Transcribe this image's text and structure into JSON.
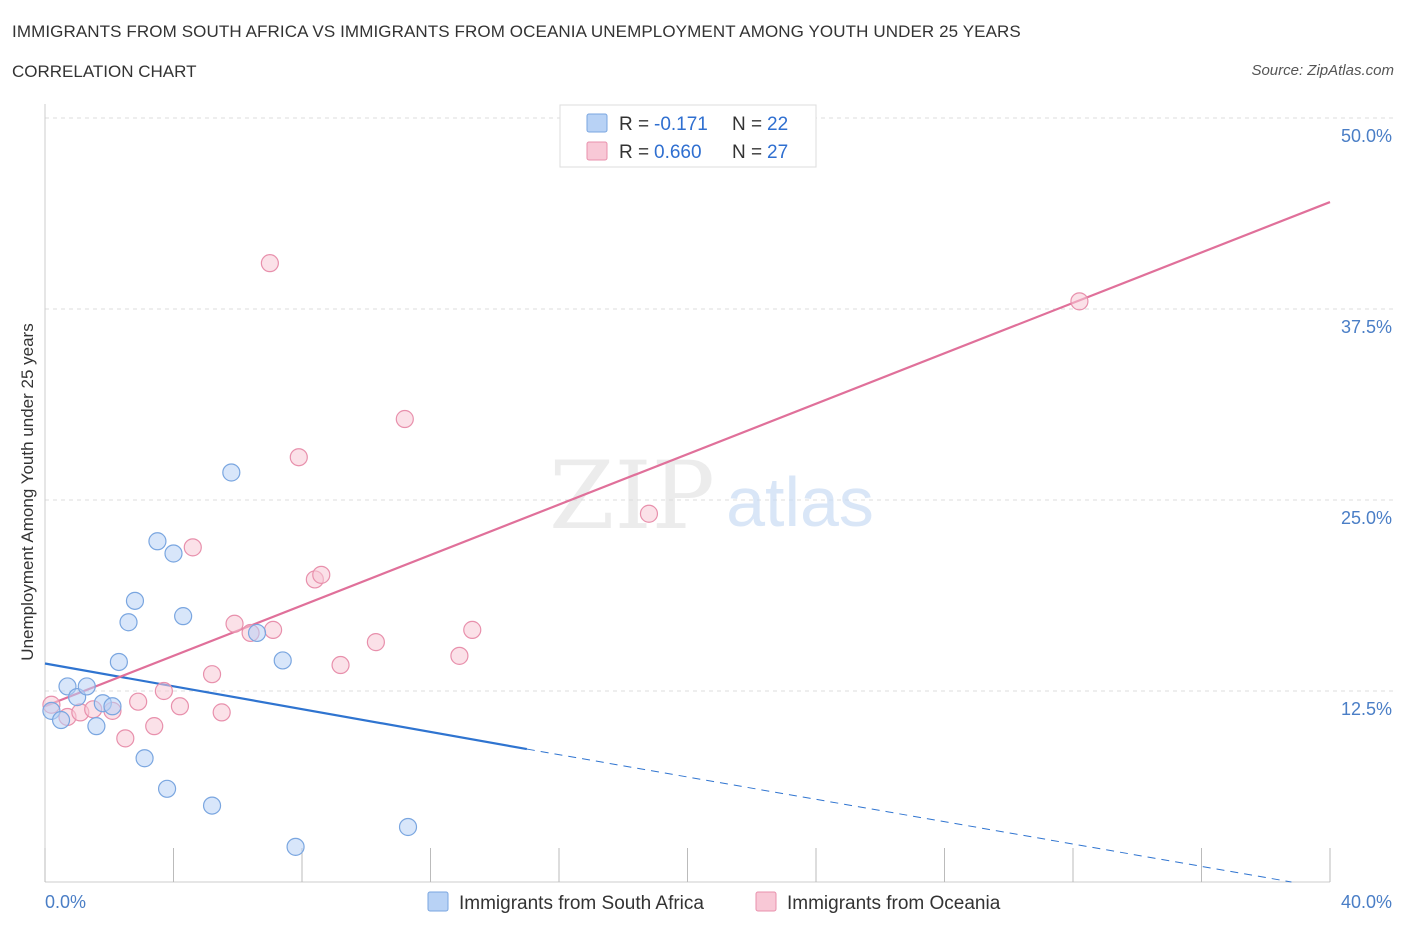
{
  "header": {
    "title": "IMMIGRANTS FROM SOUTH AFRICA VS IMMIGRANTS FROM OCEANIA UNEMPLOYMENT AMONG YOUTH UNDER 25 YEARS",
    "subtitle": "CORRELATION CHART",
    "source": "Source: ZipAtlas.com"
  },
  "watermark": {
    "zip": "ZIP",
    "atlas": "atlas"
  },
  "legend": {
    "r_label": "R =",
    "n_label": "N =",
    "rows": [
      {
        "r": "-0.171",
        "n": "22",
        "fill": "#b8d2f5",
        "stroke": "#7aa6e0"
      },
      {
        "r": "0.660",
        "n": "27",
        "fill": "#f8c8d6",
        "stroke": "#e890ac"
      }
    ]
  },
  "chart_data": {
    "type": "scatter",
    "title": "IMMIGRANTS FROM SOUTH AFRICA VS IMMIGRANTS FROM OCEANIA UNEMPLOYMENT AMONG YOUTH UNDER 25 YEARS",
    "xlabel": "",
    "ylabel": "Unemployment Among Youth under 25 years",
    "xlim": [
      0,
      40
    ],
    "ylim": [
      0,
      50
    ],
    "x_tick_labels": [
      "0.0%",
      "40.0%"
    ],
    "y_ticks": [
      12.5,
      25.0,
      37.5,
      50.0
    ],
    "y_tick_labels": [
      "12.5%",
      "25.0%",
      "37.5%",
      "50.0%"
    ],
    "grid": true,
    "series": [
      {
        "name": "Immigrants from South Africa",
        "color": "#7aa6e0",
        "fill": "#b8d2f5",
        "line_color": "#2f74d0",
        "trend": {
          "x0": 0,
          "y0": 14.3,
          "x_solid_end": 15,
          "y_solid_end": 8.7,
          "x_end": 38.8,
          "y_end": 0
        },
        "points": [
          [
            0.2,
            11.2
          ],
          [
            0.5,
            10.6
          ],
          [
            0.7,
            12.8
          ],
          [
            1.0,
            12.1
          ],
          [
            1.3,
            12.8
          ],
          [
            1.6,
            10.2
          ],
          [
            1.8,
            11.7
          ],
          [
            2.1,
            11.5
          ],
          [
            2.3,
            14.4
          ],
          [
            2.6,
            17.0
          ],
          [
            2.8,
            18.4
          ],
          [
            3.1,
            8.1
          ],
          [
            3.5,
            22.3
          ],
          [
            3.8,
            6.1
          ],
          [
            4.0,
            21.5
          ],
          [
            4.3,
            17.4
          ],
          [
            5.2,
            5.0
          ],
          [
            5.8,
            26.8
          ],
          [
            6.6,
            16.3
          ],
          [
            7.4,
            14.5
          ],
          [
            7.8,
            2.3
          ],
          [
            11.3,
            3.6
          ]
        ]
      },
      {
        "name": "Immigrants from Oceania",
        "color": "#e890ac",
        "fill": "#f8c8d6",
        "line_color": "#e0709a",
        "trend": {
          "x0": 0,
          "y0": 11.5,
          "x_end": 40,
          "y_end": 44.5
        },
        "points": [
          [
            0.2,
            11.6
          ],
          [
            0.7,
            10.8
          ],
          [
            1.1,
            11.1
          ],
          [
            1.5,
            11.3
          ],
          [
            2.1,
            11.2
          ],
          [
            2.5,
            9.4
          ],
          [
            2.9,
            11.8
          ],
          [
            3.4,
            10.2
          ],
          [
            3.7,
            12.5
          ],
          [
            4.2,
            11.5
          ],
          [
            4.6,
            21.9
          ],
          [
            5.2,
            13.6
          ],
          [
            5.5,
            11.1
          ],
          [
            5.9,
            16.9
          ],
          [
            6.4,
            16.3
          ],
          [
            7.0,
            40.5
          ],
          [
            7.1,
            16.5
          ],
          [
            7.9,
            27.8
          ],
          [
            8.4,
            19.8
          ],
          [
            8.6,
            20.1
          ],
          [
            9.2,
            14.2
          ],
          [
            10.3,
            15.7
          ],
          [
            11.2,
            30.3
          ],
          [
            12.9,
            14.8
          ],
          [
            13.3,
            16.5
          ],
          [
            18.8,
            24.1
          ],
          [
            32.2,
            38.0
          ]
        ]
      }
    ]
  },
  "bottom_legend": [
    {
      "label": "Immigrants from South Africa",
      "fill": "#b8d2f5",
      "stroke": "#7aa6e0"
    },
    {
      "label": "Immigrants from Oceania",
      "fill": "#f8c8d6",
      "stroke": "#e890ac"
    }
  ]
}
